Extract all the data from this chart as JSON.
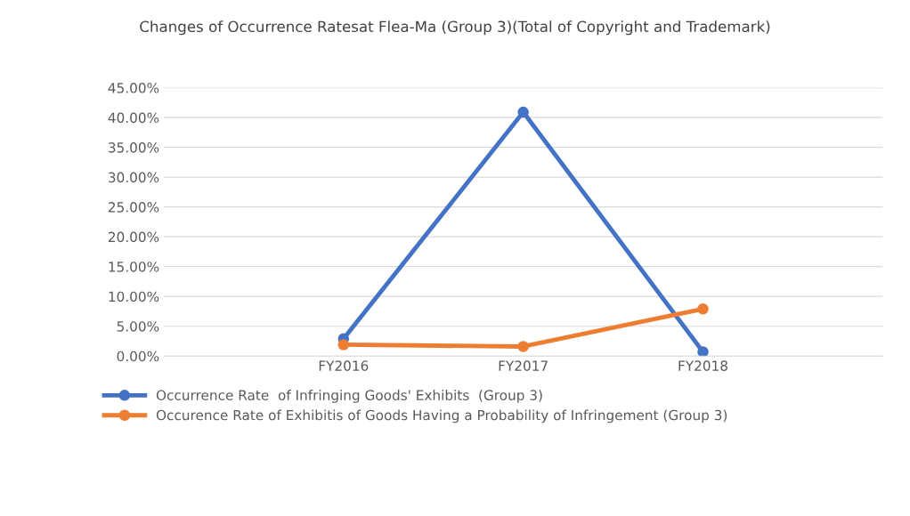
{
  "chart_data": {
    "type": "line",
    "title": "Changes of Occurrence Ratesat Flea-Ma (Group 3)(Total of Copyright and Trademark)",
    "categories": [
      "FY2016",
      "FY2017",
      "FY2018"
    ],
    "series": [
      {
        "name": "Occurrence Rate  of Infringing Goods' Exhibits  (Group 3)",
        "color": "#4472c4",
        "values": [
          2.9,
          40.9,
          0.7
        ]
      },
      {
        "name": "Occurence Rate of Exhibitis of Goods Having a Probability of Infringement (Group 3)",
        "color": "#ed7d31",
        "values": [
          1.9,
          1.6,
          7.9
        ]
      }
    ],
    "ylim": [
      0,
      45
    ],
    "yticks": [
      {
        "value": 0,
        "label": "0.00%"
      },
      {
        "value": 5,
        "label": "5.00%"
      },
      {
        "value": 10,
        "label": "10.00%"
      },
      {
        "value": 15,
        "label": "15.00%"
      },
      {
        "value": 20,
        "label": "20.00%"
      },
      {
        "value": 25,
        "label": "25.00%"
      },
      {
        "value": 30,
        "label": "30.00%"
      },
      {
        "value": 35,
        "label": "35.00%"
      },
      {
        "value": 40,
        "label": "40.00%"
      },
      {
        "value": 45,
        "label": "45.00%"
      }
    ],
    "grid": "y",
    "legend": "bottom",
    "marker": "circle",
    "line_style": "solid"
  }
}
